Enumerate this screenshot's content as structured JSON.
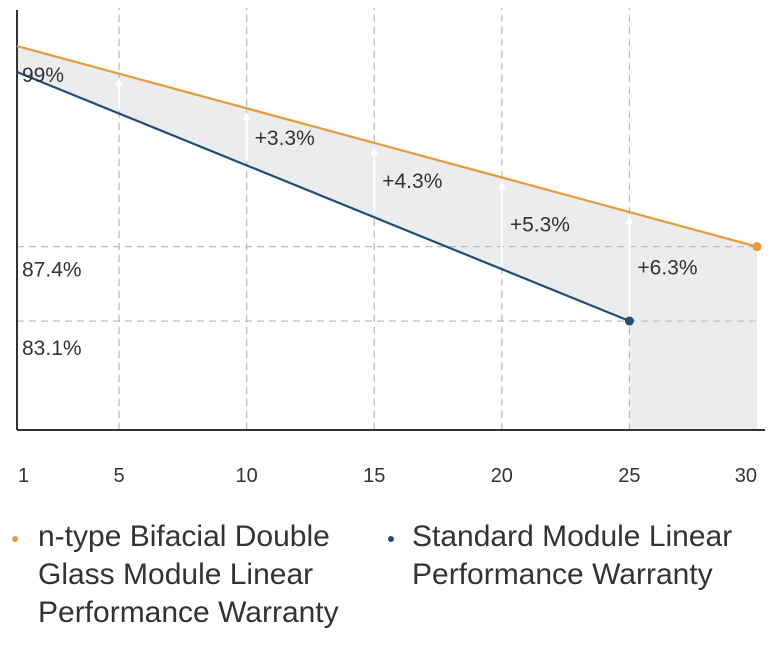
{
  "chart_data": {
    "type": "line",
    "x": [
      1,
      5,
      10,
      15,
      20,
      25,
      30
    ],
    "xlim": [
      1,
      30
    ],
    "ylim": [
      76.8,
      101.2
    ],
    "xticks": [
      "1",
      "5",
      "10",
      "15",
      "20",
      "25",
      "30"
    ],
    "series": [
      {
        "name": "n-type Bifacial Double Glass Module Linear Performance Warranty",
        "color": "#e79a3c",
        "values": [
          {
            "x": 1,
            "y": 99
          },
          {
            "x": 30,
            "y": 87.4
          }
        ]
      },
      {
        "name": "Standard Module Linear Performance Warranty",
        "color": "#1f4e79",
        "values": [
          {
            "x": 1,
            "y": 97.5
          },
          {
            "x": 25,
            "y": 83.1
          }
        ]
      }
    ],
    "y_labels": [
      "99%",
      "87.4%",
      "83.1%"
    ],
    "y_reference_values": [
      87.4,
      83.1
    ],
    "gaps": [
      {
        "x": 5,
        "label": ""
      },
      {
        "x": 10,
        "label": "+3.3%"
      },
      {
        "x": 15,
        "label": "+4.3%"
      },
      {
        "x": 20,
        "label": "+5.3%"
      },
      {
        "x": 25,
        "label": "+6.3%"
      }
    ],
    "grid": true,
    "colors": {
      "fill": "#ececec",
      "grid": "#b8b8b8",
      "axis": "#333333",
      "text": "#333333",
      "arrow": "#ffffff"
    }
  },
  "legend": {
    "items": [
      {
        "text": "n-type Bifacial Double Glass Module Linear Performance Warranty",
        "color": "#e79a3c"
      },
      {
        "text": "Standard Module Linear Performance Warranty",
        "color": "#1f4e79"
      }
    ]
  }
}
